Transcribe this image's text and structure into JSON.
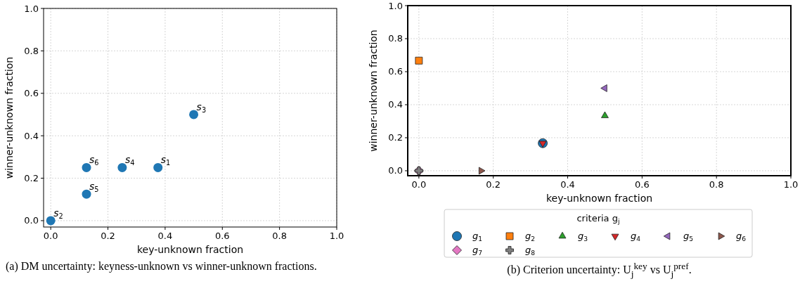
{
  "chart_data": [
    {
      "type": "scatter",
      "xlabel": "key-unknown fraction",
      "ylabel": "winner-unknown fraction",
      "x": [
        0.375,
        0,
        0.5,
        0.25,
        0.125,
        0.125
      ],
      "values": [
        0.25,
        0,
        0.5,
        0.25,
        0.125,
        0.25
      ],
      "color": "#1f77b4",
      "marker": "circle",
      "xlim": [
        -0.025,
        1.0
      ],
      "ylim": [
        -0.03,
        1.0
      ],
      "xticks": [
        {
          "value": 0,
          "label": "0.0"
        },
        {
          "value": 0.2,
          "label": "0.2"
        },
        {
          "value": 0.4,
          "label": "0.4"
        },
        {
          "value": 0.6,
          "label": "0.6"
        },
        {
          "value": 0.8,
          "label": "0.8"
        },
        {
          "value": 1,
          "label": "1.0"
        }
      ],
      "yticks": [
        {
          "value": 0,
          "label": "0.0"
        },
        {
          "value": 0.2,
          "label": "0.2"
        },
        {
          "value": 0.4,
          "label": "0.4"
        },
        {
          "value": 0.6,
          "label": "0.6"
        },
        {
          "value": 0.8,
          "label": "0.8"
        },
        {
          "value": 1,
          "label": "1.0"
        }
      ],
      "grid": true,
      "annotations": [
        {
          "text": "s$_{1}$",
          "x": 0.375,
          "y": 0.25
        },
        {
          "text": "s$_{2}$",
          "x": 0,
          "y": 0
        },
        {
          "text": "s$_{3}$",
          "x": 0.5,
          "y": 0.5
        },
        {
          "text": "s$_{4}$",
          "x": 0.25,
          "y": 0.25
        },
        {
          "text": "s$_{5}$",
          "x": 0.125,
          "y": 0.125
        },
        {
          "text": "s$_{6}$",
          "x": 0.125,
          "y": 0.25
        },
        "(a) DM uncertainty: keyness-unknown vs winner-unknown fractions."
      ]
    },
    {
      "type": "scatter",
      "xlabel": "key-unknown fraction",
      "ylabel": "winner-unknown fraction",
      "legend_title": "criteria g$_{j}$",
      "legend": "bottom",
      "xlim": [
        -0.03,
        1.0
      ],
      "ylim": [
        -0.03,
        1.0
      ],
      "xticks": [
        {
          "value": 0,
          "label": "0.0"
        },
        {
          "value": 0.2,
          "label": "0.2"
        },
        {
          "value": 0.4,
          "label": "0.4"
        },
        {
          "value": 0.6,
          "label": "0.6"
        },
        {
          "value": 0.8,
          "label": "0.8"
        },
        {
          "value": 1,
          "label": "1.0"
        }
      ],
      "yticks": [
        {
          "value": 0,
          "label": "0.0"
        },
        {
          "value": 0.2,
          "label": "0.2"
        },
        {
          "value": 0.4,
          "label": "0.4"
        },
        {
          "value": 0.6,
          "label": "0.6"
        },
        {
          "value": 0.8,
          "label": "0.8"
        },
        {
          "value": 1,
          "label": "1.0"
        }
      ],
      "grid": true,
      "series": [
        {
          "name": "g$_{1}$",
          "color": "#1f77b4",
          "marker": "circle",
          "x": [
            0.333
          ],
          "values": [
            0.167
          ]
        },
        {
          "name": "g$_{2}$",
          "color": "#ff7f0e",
          "marker": "square",
          "x": [
            0
          ],
          "values": [
            0.667
          ]
        },
        {
          "name": "g$_{3}$",
          "color": "#2ca02c",
          "marker": "triangle",
          "x": [
            0.5
          ],
          "values": [
            0.333
          ]
        },
        {
          "name": "g$_{4}$",
          "color": "#d62728",
          "marker": "triangle-down",
          "x": [
            0.333
          ],
          "values": [
            0.167
          ]
        },
        {
          "name": "g$_{5}$",
          "color": "#9467bd",
          "marker": "triangle-left",
          "x": [
            0.5
          ],
          "values": [
            0.5
          ]
        },
        {
          "name": "g$_{6}$",
          "color": "#8c564b",
          "marker": "triangle-right",
          "x": [
            0.167
          ],
          "values": [
            0
          ]
        },
        {
          "name": "g$_{7}$",
          "color": "#e377c2",
          "marker": "diamond",
          "x": [
            0
          ],
          "values": [
            0
          ]
        },
        {
          "name": "g$_{8}$",
          "color": "#7f7f7f",
          "marker": "cross",
          "x": [
            0
          ],
          "values": [
            0
          ]
        }
      ],
      "annotations": [
        "(b) Criterion uncertainty: U$_{j}$$^{key}$ vs U$_{j}$$^{pref}$."
      ]
    }
  ]
}
